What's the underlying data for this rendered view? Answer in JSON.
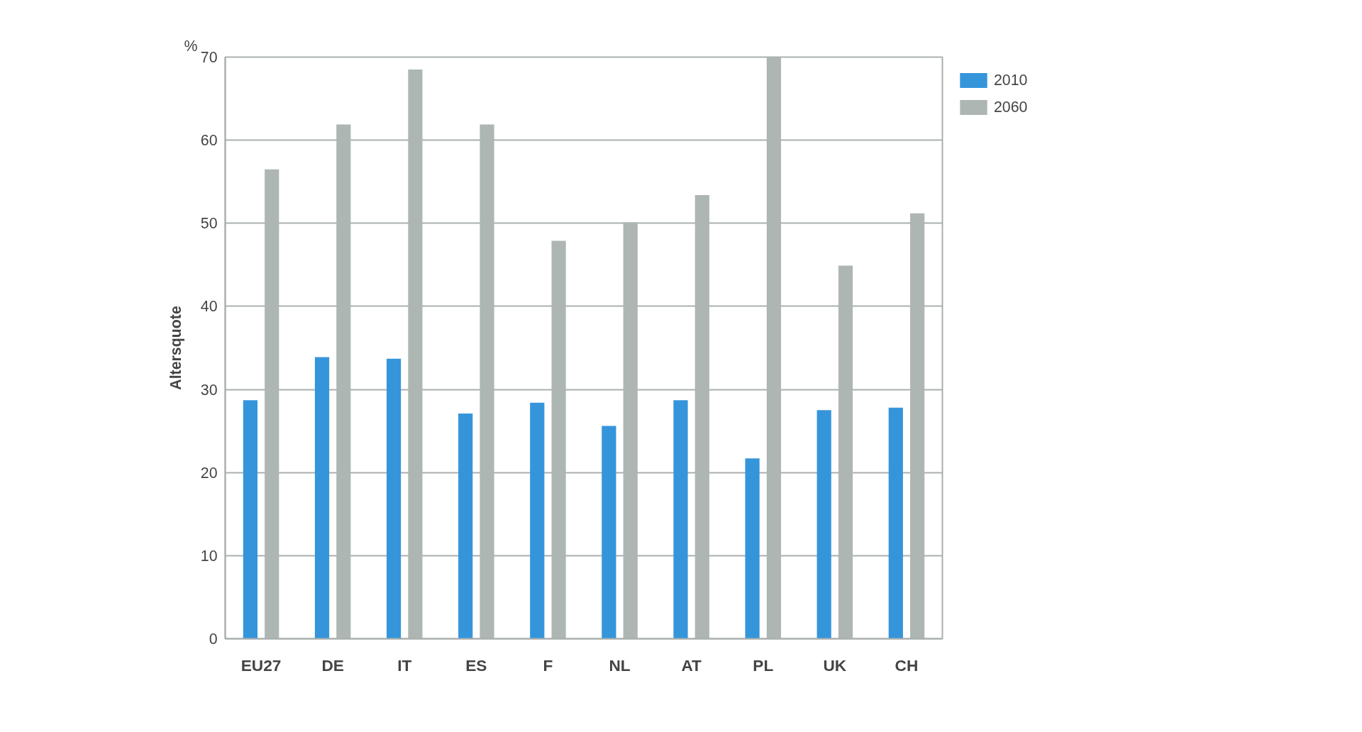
{
  "chart_data": {
    "type": "bar",
    "ylabel": "Altersquote",
    "annotations": [
      "%"
    ],
    "categories": [
      "EU27",
      "DE",
      "IT",
      "ES",
      "F",
      "NL",
      "AT",
      "PL",
      "UK",
      "CH"
    ],
    "series": [
      {
        "name": "2010",
        "color": "#3595db",
        "values": [
          28.7,
          33.9,
          33.7,
          27.1,
          28.4,
          25.6,
          28.7,
          21.7,
          27.5,
          27.8
        ]
      },
      {
        "name": "2060",
        "color": "#aeb6b3",
        "values": [
          56.5,
          61.9,
          68.5,
          61.9,
          47.9,
          50.1,
          53.4,
          70,
          44.9,
          51.2
        ]
      }
    ],
    "ylim": [
      0,
      70
    ],
    "yticks": [
      0,
      10,
      20,
      30,
      40,
      50,
      60,
      70
    ],
    "grid": "y",
    "legend": "top right"
  }
}
